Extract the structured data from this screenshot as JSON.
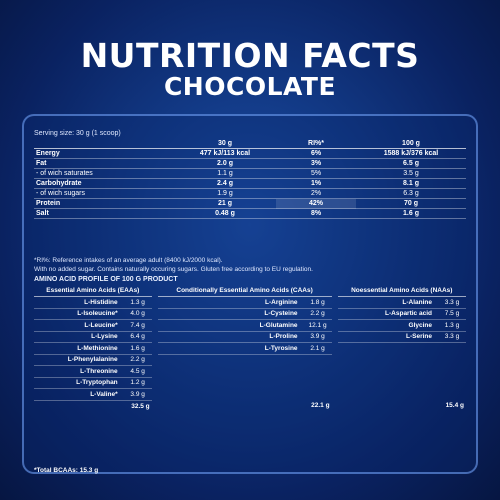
{
  "header": {
    "title": "NUTRITION FACTS",
    "subtitle": "CHOCOLATE"
  },
  "serving": "Serving size: 30 g (1 scoop)",
  "nutrition": {
    "headers": [
      "",
      "30 g",
      "RI%*",
      "100 g"
    ],
    "rows": [
      {
        "name": "Energy",
        "per30": "477 kJ/113 kcal",
        "ri": "6%",
        "per100": "1588 kJ/376 kcal",
        "bold": true
      },
      {
        "name": "Fat",
        "per30": "2.0 g",
        "ri": "3%",
        "per100": "6.5 g",
        "bold": true
      },
      {
        "name": "- of wich saturates",
        "per30": "1.1 g",
        "ri": "5%",
        "per100": "3.5 g",
        "bold": false
      },
      {
        "name": "Carbohydrate",
        "per30": "2.4 g",
        "ri": "1%",
        "per100": "8.1 g",
        "bold": true
      },
      {
        "name": "- of wich sugars",
        "per30": "1.9 g",
        "ri": "2%",
        "per100": "6.3 g",
        "bold": false
      },
      {
        "name": "Protein",
        "per30": "21 g",
        "ri": "42%",
        "per100": "70 g",
        "bold": true
      },
      {
        "name": "Salt",
        "per30": "0.48 g",
        "ri": "8%",
        "per100": "1.6 g",
        "bold": true
      }
    ]
  },
  "notes": [
    "*RI%: Reference intakes of an average adult (8400 kJ/2000 kcal).",
    "With no added sugar. Contains naturally occuring sugars. Gluten free according to EU regulation."
  ],
  "amino": {
    "title": "AMINO ACID PROFILE OF 100 G PRODUCT",
    "headers": [
      "Essential Amino Acids (EAAs)",
      "Conditionally Essential Amino Acids (CAAs)",
      "Noessential Amino Acids (NAAs)"
    ],
    "rows": [
      [
        "L-Histidine",
        "1.3 g",
        "L-Arginine",
        "1.8 g",
        "L-Alanine",
        "3.3 g"
      ],
      [
        "L-Isoleucine*",
        "4.0 g",
        "L-Cysteine",
        "2.2 g",
        "L-Aspartic acid",
        "7.5 g"
      ],
      [
        "L-Leucine*",
        "7.4 g",
        "L-Glutamine",
        "12.1 g",
        "Glycine",
        "1.3 g"
      ],
      [
        "L-Lysine",
        "6.4 g",
        "L-Proline",
        "3.9 g",
        "L-Serine",
        "3.3 g"
      ],
      [
        "L-Methionine",
        "1.6 g",
        "L-Tyrosine",
        "2.1 g",
        "",
        ""
      ],
      [
        "L-Phenylalanine",
        "2.2 g",
        "",
        "",
        "",
        ""
      ],
      [
        "L-Threonine",
        "4.5 g",
        "",
        "",
        "",
        ""
      ],
      [
        "L-Tryptophan",
        "1.2 g",
        "",
        "",
        "",
        ""
      ],
      [
        "L-Valine*",
        "3.9 g",
        "",
        "",
        "",
        ""
      ]
    ],
    "totals": [
      "32.5 g",
      "22.1 g",
      "15.4 g"
    ],
    "bcaa": "*Total BCAAs: 15.3 g"
  }
}
